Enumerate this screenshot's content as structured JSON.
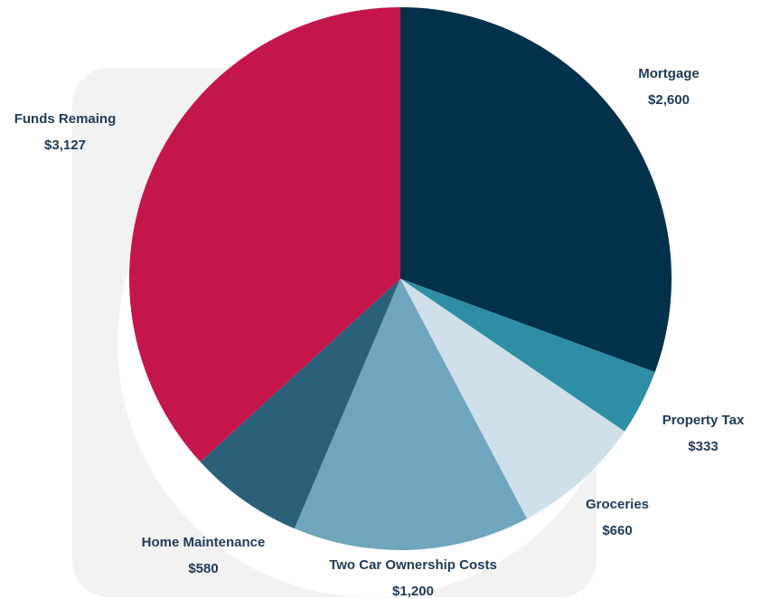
{
  "chart_data": {
    "type": "pie",
    "categories": [
      "Mortgage",
      "Property Tax",
      "Groceries",
      "Two Car Ownership Costs",
      "Home Maintenance",
      "Funds Remaing"
    ],
    "values": [
      2600,
      333,
      660,
      1200,
      580,
      3127
    ],
    "value_labels": [
      "$2,600",
      "$333",
      "$660",
      "$1,200",
      "$580",
      "$3,127"
    ],
    "colors": [
      "#03304a",
      "#2e8ea6",
      "#cfe0ea",
      "#6fa6bd",
      "#2a607a",
      "#c4164b"
    ]
  }
}
